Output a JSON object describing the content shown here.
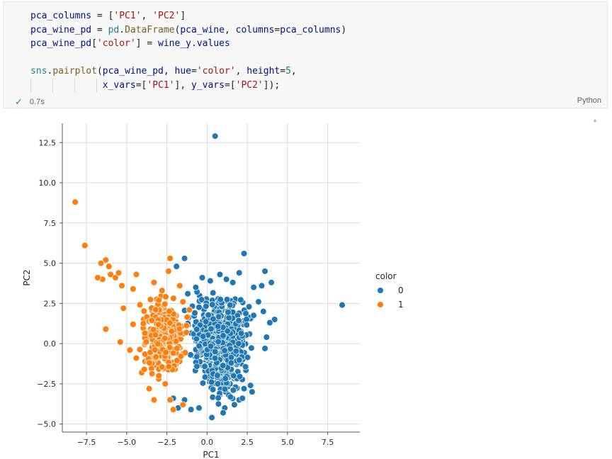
{
  "cell": {
    "code_lines": [
      "pca_columns = ['PC1', 'PC2']",
      "pca_wine_pd = pd.DataFrame(pca_wine, columns=pca_columns)",
      "pca_wine_pd['color'] = wine_y.values",
      "",
      "sns.pairplot(pca_wine_pd, hue='color', height=5,",
      "             x_vars=['PC1'], y_vars=['PC2']);"
    ],
    "exec_time": "0.7s",
    "language": "Python",
    "status_icon": "check-icon"
  },
  "chart_data": {
    "type": "scatter",
    "xlabel": "PC1",
    "ylabel": "PC2",
    "xlim": [
      -9.0,
      9.5
    ],
    "ylim": [
      -5.5,
      13.7
    ],
    "xticks": [
      -7.5,
      -5.0,
      -2.5,
      0.0,
      2.5,
      5.0,
      7.5
    ],
    "yticks": [
      -5.0,
      -2.5,
      0.0,
      2.5,
      5.0,
      7.5,
      10.0,
      12.5
    ],
    "xtick_labels": [
      "−7.5",
      "−5.0",
      "−2.5",
      "0.0",
      "2.5",
      "5.0",
      "7.5"
    ],
    "ytick_labels": [
      "−5.0",
      "−2.5",
      "0.0",
      "2.5",
      "5.0",
      "7.5",
      "10.0",
      "12.5"
    ],
    "grid": true,
    "legend": {
      "title": "color",
      "placement": "right",
      "entries": [
        {
          "label": "0",
          "color": "#1f77b4"
        },
        {
          "label": "1",
          "color": "#ff7f0e"
        }
      ]
    },
    "series": [
      {
        "name": "0",
        "color": "#1f77b4",
        "points": [
          [
            0.5,
            12.9
          ],
          [
            8.4,
            2.4
          ],
          [
            2.3,
            5.6
          ],
          [
            -1.4,
            5.3
          ],
          [
            -1.9,
            4.8
          ],
          [
            3.6,
            4.5
          ],
          [
            4.0,
            3.8
          ],
          [
            0.8,
            4.3
          ],
          [
            2.0,
            4.4
          ],
          [
            -0.3,
            4.1
          ],
          [
            1.2,
            4.0
          ],
          [
            3.4,
            3.6
          ],
          [
            4.2,
            1.5
          ],
          [
            3.9,
            1.3
          ],
          [
            3.7,
            0.4
          ],
          [
            3.6,
            -0.3
          ],
          [
            2.7,
            -2.6
          ],
          [
            2.3,
            -2.8
          ],
          [
            2.0,
            -3.5
          ],
          [
            1.7,
            -3.8
          ],
          [
            1.1,
            -4.0
          ],
          [
            1.0,
            -4.3
          ],
          [
            0.3,
            -4.6
          ],
          [
            -0.5,
            -4.0
          ],
          [
            -1.0,
            -4.1
          ],
          [
            -1.8,
            -4.0
          ],
          [
            -1.4,
            -3.5
          ],
          [
            -2.1,
            -3.4
          ],
          [
            2.2,
            -3.4
          ],
          [
            2.8,
            -3.0
          ],
          [
            0.2,
            3.9
          ],
          [
            -0.7,
            3.5
          ],
          [
            -1.2,
            3.1
          ],
          [
            1.6,
            3.8
          ],
          [
            2.9,
            3.5
          ],
          [
            3.2,
            2.6
          ],
          [
            3.5,
            2.0
          ],
          [
            0.5,
            -0.5
          ],
          [
            1.0,
            0.5
          ],
          [
            1.5,
            -1.2
          ]
        ],
        "cloud": {
          "x_range": [
            -1.8,
            3.4
          ],
          "y_range": [
            -3.6,
            3.4
          ],
          "count": 700
        }
      },
      {
        "name": "1",
        "color": "#ff7f0e",
        "points": [
          [
            -8.2,
            8.8
          ],
          [
            -7.6,
            6.1
          ],
          [
            -6.3,
            5.2
          ],
          [
            -6.6,
            5.0
          ],
          [
            -6.1,
            4.8
          ],
          [
            -6.0,
            4.3
          ],
          [
            -5.7,
            4.1
          ],
          [
            -6.5,
            4.0
          ],
          [
            -6.8,
            4.1
          ],
          [
            -5.5,
            4.4
          ],
          [
            -5.3,
            3.6
          ],
          [
            -5.2,
            2.2
          ],
          [
            -6.3,
            0.9
          ],
          [
            -5.4,
            0.1
          ],
          [
            -4.6,
            3.4
          ],
          [
            -4.4,
            4.3
          ],
          [
            -3.3,
            3.8
          ],
          [
            -2.3,
            5.3
          ],
          [
            -2.4,
            4.5
          ],
          [
            -1.7,
            3.6
          ],
          [
            -3.6,
            -2.8
          ],
          [
            -3.3,
            -3.5
          ],
          [
            -3.0,
            -2.0
          ],
          [
            -2.3,
            -3.5
          ],
          [
            -2.1,
            -4.1
          ],
          [
            -1.5,
            -3.8
          ],
          [
            -4.6,
            1.2
          ],
          [
            -4.8,
            -0.4
          ],
          [
            -4.4,
            -0.9
          ],
          [
            -2.8,
            3.3
          ],
          [
            -3.0,
            2.7
          ],
          [
            -1.5,
            2.6
          ],
          [
            -1.1,
            2.1
          ],
          [
            -3.9,
            -1.6
          ],
          [
            -2.6,
            -2.5
          ]
        ],
        "cloud": {
          "x_range": [
            -4.3,
            -1.1
          ],
          "y_range": [
            -2.4,
            3.3
          ],
          "count": 320
        }
      }
    ]
  }
}
